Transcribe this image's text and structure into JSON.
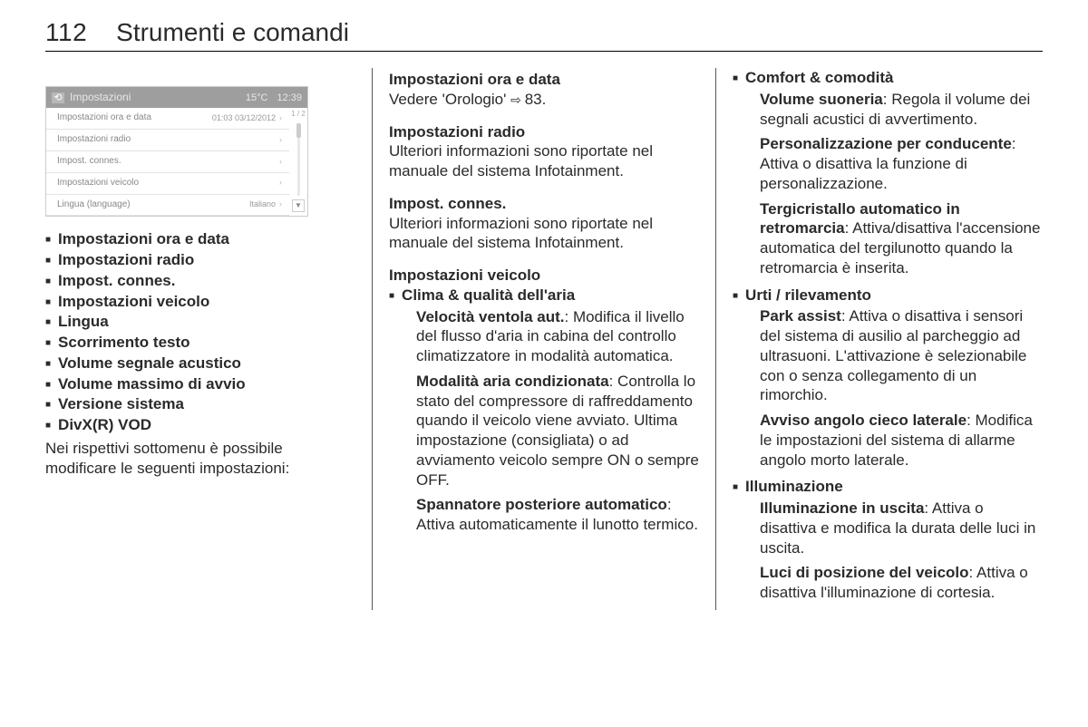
{
  "header": {
    "page_no": "112",
    "title": "Strumenti e comandi"
  },
  "screenshot": {
    "topbar": {
      "title": "Impostazioni",
      "temp": "15°C",
      "time": "12:39"
    },
    "page_indicator": "1 / 2",
    "rows": [
      {
        "label": "Impostazioni ora e data",
        "value": "01:03  03/12/2012"
      },
      {
        "label": "Impostazioni radio",
        "value": ""
      },
      {
        "label": "Impost. connes.",
        "value": ""
      },
      {
        "label": "Impostazioni veicolo",
        "value": ""
      },
      {
        "label": "Lingua (language)",
        "value": "Italiano"
      }
    ]
  },
  "col1": {
    "toc": [
      "Impostazioni ora e data",
      "Impostazioni radio",
      "Impost. connes.",
      "Impostazioni veicolo",
      "Lingua",
      "Scorrimento testo",
      "Volume segnale acustico",
      "Volume massimo di avvio",
      "Versione sistema",
      "DivX(R) VOD"
    ],
    "follow": "Nei rispettivi sottomenu è possibile modificare le seguenti impostazioni:"
  },
  "col2": {
    "s1": {
      "h": "Impostazioni ora e data",
      "t": "Vedere 'Orologio' ",
      "ref": "83."
    },
    "s2": {
      "h": "Impostazioni radio",
      "t": "Ulteriori informazioni sono riportate nel manuale del sistema Infotainment."
    },
    "s3": {
      "h": "Impost. connes.",
      "t": "Ulteriori informazioni sono riportate nel manuale del sistema Infotainment."
    },
    "s4": {
      "h": "Impostazioni veicolo",
      "b1": {
        "title": "Clima & qualità dell'aria",
        "subs": [
          {
            "st": "Velocità ventola aut.",
            "tx": ": Modifica il livello del flusso d'aria in cabina del controllo climatizzatore in modalità automatica."
          },
          {
            "st": "Modalità aria condizionata",
            "tx": ": Controlla lo stato del compressore di raffreddamento quando il veicolo viene avviato. Ultima impostazione (consigliata) o ad avviamento veicolo sempre ON o sempre OFF."
          },
          {
            "st": "Spannatore posteriore automatico",
            "tx": ": Attiva automaticamente il lunotto termico."
          }
        ]
      }
    }
  },
  "col3": {
    "b1": {
      "title": "Comfort & comodità",
      "subs": [
        {
          "st": "Volume suoneria",
          "tx": ": Regola il volume dei segnali acustici di avvertimento."
        },
        {
          "st": "Personalizzazione per conducente",
          "tx": ": Attiva o disattiva la funzione di personalizzazione."
        },
        {
          "st": "Tergicristallo automatico in retromarcia",
          "tx": ": Attiva/disattiva l'accensione automatica del tergilunotto quando la retromarcia è inserita."
        }
      ]
    },
    "b2": {
      "title": "Urti / rilevamento",
      "subs": [
        {
          "st": "Park assist",
          "tx": ": Attiva o disattiva i sensori del sistema di ausilio al parcheggio ad ultrasuoni. L'attivazione è selezionabile con o senza collegamento di un rimorchio."
        },
        {
          "st": "Avviso angolo cieco laterale",
          "tx": ": Modifica le impostazioni del sistema di allarme angolo morto laterale."
        }
      ]
    },
    "b3": {
      "title": "Illuminazione",
      "subs": [
        {
          "st": "Illuminazione in uscita",
          "tx": ": Attiva o disattiva e modifica la durata delle luci in uscita."
        },
        {
          "st": "Luci di posizione del veicolo",
          "tx": ": Attiva o disattiva l'illuminazione di cortesia."
        }
      ]
    }
  }
}
